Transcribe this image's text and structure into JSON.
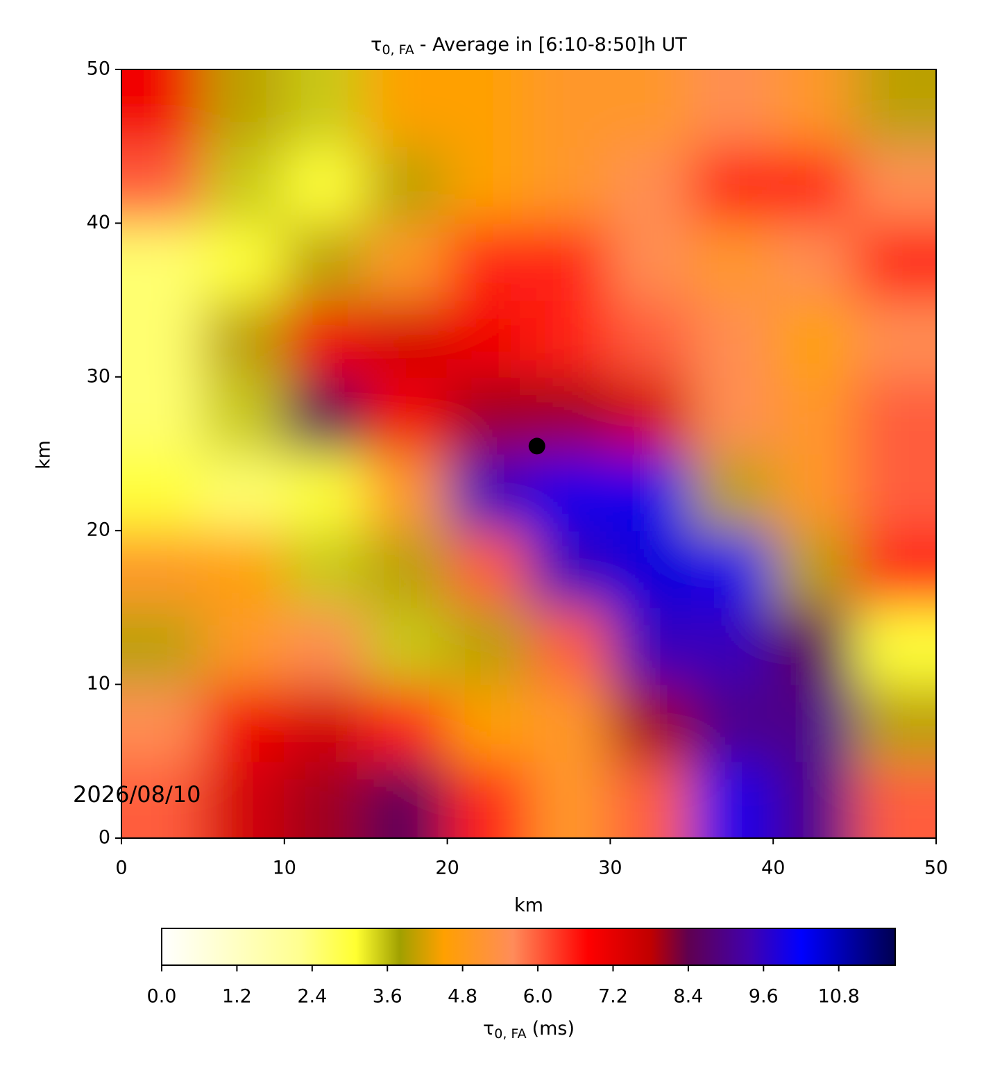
{
  "chart_data": {
    "type": "heatmap",
    "title": {
      "symbol": "τ",
      "subscript": "0, FA",
      "text": "- Average in [6:10-8:50]h UT"
    },
    "x_label": "km",
    "y_label": "km",
    "xlim": [
      0,
      50
    ],
    "ylim": [
      0,
      50
    ],
    "xticks": [
      0,
      10,
      20,
      30,
      40,
      50
    ],
    "yticks": [
      0,
      10,
      20,
      30,
      40,
      50
    ],
    "x": [
      2.5,
      7.5,
      12.5,
      17.5,
      22.5,
      27.5,
      32.5,
      37.5,
      42.5,
      47.5
    ],
    "y": [
      2.5,
      7.5,
      12.5,
      17.5,
      22.5,
      27.5,
      32.5,
      37.5,
      42.5,
      47.5
    ],
    "values": [
      [
        6,
        7.5,
        8,
        8.5,
        6.5,
        5,
        6,
        10,
        9,
        6
      ],
      [
        5.5,
        7,
        7.5,
        6.5,
        4.5,
        5,
        8,
        9,
        9,
        4
      ],
      [
        4,
        5,
        5.5,
        3.5,
        4,
        6,
        9.5,
        9.5,
        8.5,
        3
      ],
      [
        5,
        4.5,
        3.5,
        4,
        6,
        9.5,
        10.5,
        10,
        4,
        6.5
      ],
      [
        3,
        2.5,
        3,
        5,
        9.5,
        10,
        10,
        4,
        5,
        6
      ],
      [
        2.5,
        3.5,
        8.5,
        7,
        8,
        8,
        7.5,
        5.5,
        5,
        6
      ],
      [
        2.5,
        4,
        7,
        7.5,
        7,
        6.5,
        6,
        5.5,
        4.5,
        5.5
      ],
      [
        2.5,
        3,
        4,
        5,
        6.5,
        6.5,
        5.5,
        5,
        5.5,
        6.5
      ],
      [
        6,
        3.5,
        3,
        4,
        4.5,
        5,
        5.5,
        6.5,
        6.5,
        5.5
      ],
      [
        7,
        4,
        3.5,
        4.5,
        4.5,
        5,
        5,
        5.5,
        5,
        4
      ]
    ],
    "marker": {
      "x": 25.5,
      "y": 25.5,
      "color": "#000000"
    },
    "colorbar": {
      "lim": [
        0,
        11.7
      ],
      "ticks": [
        {
          "value": 0,
          "label": "0.0"
        },
        1.2,
        2.4,
        3.6,
        4.8,
        {
          "value": 6,
          "label": "6.0"
        },
        7.2,
        8.4,
        9.6,
        10.8
      ],
      "label": {
        "symbol": "τ",
        "subscript": "0, FA",
        "text": "(ms)"
      },
      "colors": [
        {
          "value": 0,
          "color": "#ffffff"
        },
        {
          "value": 2.2,
          "color": "#ffff90"
        },
        {
          "value": 3.1,
          "color": "#ffff30"
        },
        {
          "value": 3.8,
          "color": "#a0a000"
        },
        {
          "value": 4.5,
          "color": "#ffa000"
        },
        {
          "value": 5.6,
          "color": "#ff8c5a"
        },
        {
          "value": 6.8,
          "color": "#ff0000"
        },
        {
          "value": 7.8,
          "color": "#c00000"
        },
        {
          "value": 8.4,
          "color": "#600050"
        },
        {
          "value": 9.4,
          "color": "#4000b0"
        },
        {
          "value": 10.2,
          "color": "#0000ff"
        },
        {
          "value": 11.7,
          "color": "#000050"
        }
      ]
    },
    "date": "2026/08/10"
  }
}
